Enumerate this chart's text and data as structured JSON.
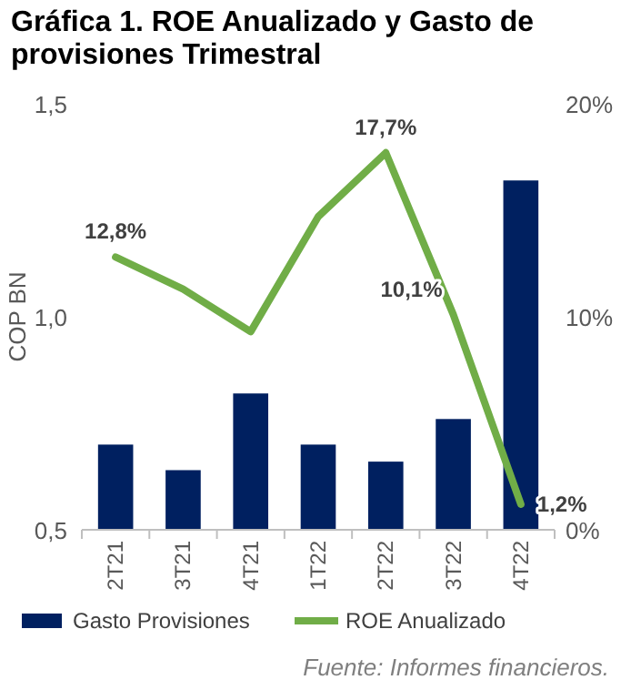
{
  "chart_data": {
    "type": "bar",
    "title": "Gráfica 1. ROE Anualizado y Gasto de provisiones Trimestral",
    "ylabel": "COP BN",
    "categories": [
      "2T21",
      "3T21",
      "4T21",
      "1T22",
      "2T22",
      "3T22",
      "4T22"
    ],
    "series": [
      {
        "name": "Gasto Provisiones",
        "color": "#002060",
        "values": [
          0.7,
          0.64,
          0.82,
          0.7,
          0.66,
          0.76,
          1.32
        ]
      },
      {
        "name": "ROE Anualizado",
        "type": "line",
        "axis": "y2",
        "color": "#70ad47",
        "values": [
          12.8,
          11.3,
          9.3,
          14.7,
          17.7,
          10.1,
          1.2
        ],
        "value_labels": [
          "12,8%",
          null,
          null,
          null,
          "17,7%",
          "10,1%",
          "1,2%"
        ]
      }
    ],
    "ylim": [
      0.5,
      1.5
    ],
    "yticks": [
      {
        "value": 0.5,
        "label": "0,5"
      },
      {
        "value": 1.0,
        "label": "1,0"
      },
      {
        "value": 1.5,
        "label": "1,5"
      }
    ],
    "y2lim": [
      0,
      20
    ],
    "y2ticks": [
      {
        "value": 0,
        "label": "0%"
      },
      {
        "value": 10,
        "label": "10%"
      },
      {
        "value": 20,
        "label": "20%"
      }
    ],
    "legend": "bottom",
    "marker": "none",
    "line_style": "solid",
    "annotations": [
      "Fuente: Informes financieros."
    ]
  }
}
